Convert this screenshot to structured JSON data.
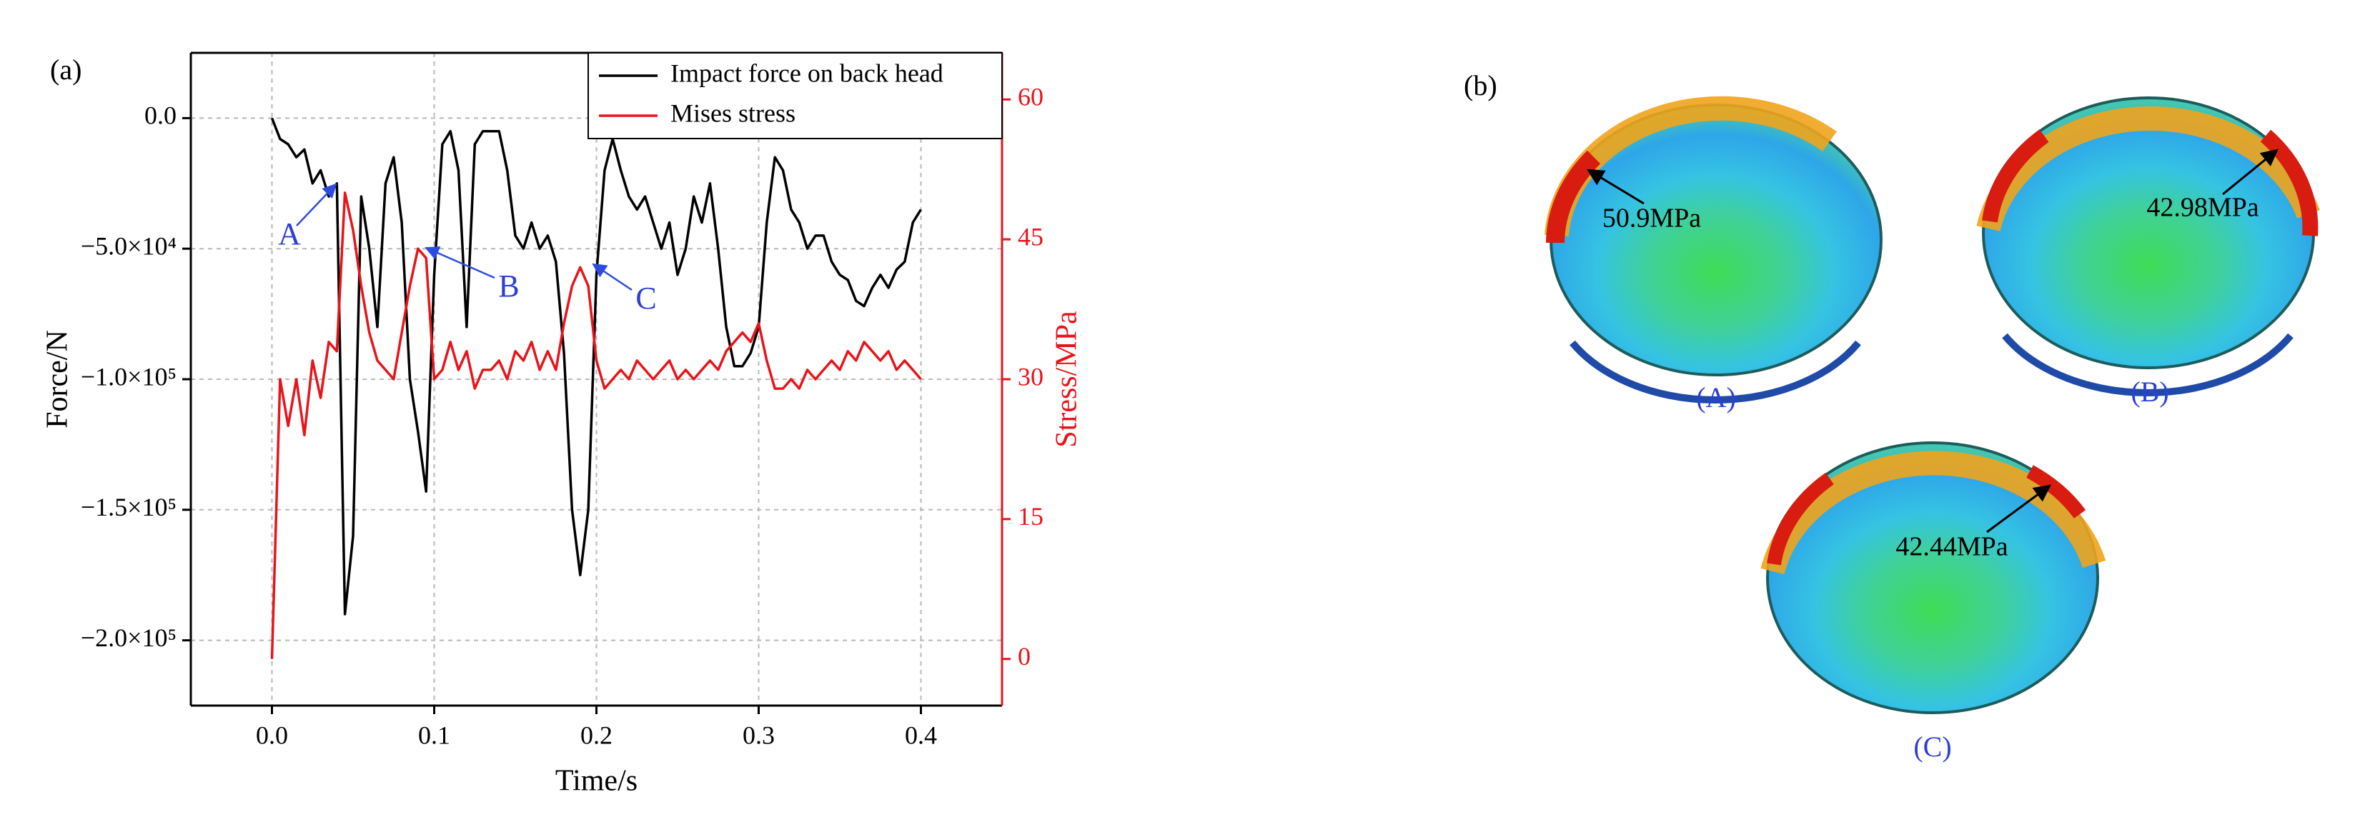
{
  "chart_data": {
    "type": "line",
    "panel_label": "(a)",
    "x_label": "Time/s",
    "y_label": "Force/N",
    "y2_label": "Stress/MPa",
    "xlim": [
      -0.05,
      0.45
    ],
    "xticks": [
      {
        "value": 0,
        "label": "0.0"
      },
      0.1,
      0.2,
      0.3,
      0.4
    ],
    "ylim": [
      -225000,
      25000
    ],
    "yticks": [
      {
        "value": 0,
        "label": "0.0"
      },
      {
        "value": -50000,
        "label": "−5.0×10⁴"
      },
      {
        "value": -100000,
        "label": "−1.0×10⁵"
      },
      {
        "value": -150000,
        "label": "−1.5×10⁵"
      },
      {
        "value": -200000,
        "label": "−2.0×10⁵"
      }
    ],
    "y2lim": [
      -5,
      65
    ],
    "y2ticks": [
      0,
      15,
      30,
      45,
      60
    ],
    "y2_color": "#e8141a",
    "grid": true,
    "legend": "top-right",
    "x": [
      0,
      0.005,
      0.01,
      0.015,
      0.02,
      0.025,
      0.03,
      0.035,
      0.04,
      0.045,
      0.05,
      0.055,
      0.06,
      0.065,
      0.07,
      0.075,
      0.08,
      0.085,
      0.09,
      0.095,
      0.1,
      0.105,
      0.11,
      0.115,
      0.12,
      0.125,
      0.13,
      0.135,
      0.14,
      0.145,
      0.15,
      0.155,
      0.16,
      0.165,
      0.17,
      0.175,
      0.18,
      0.185,
      0.19,
      0.195,
      0.2,
      0.205,
      0.21,
      0.215,
      0.22,
      0.225,
      0.23,
      0.235,
      0.24,
      0.245,
      0.25,
      0.255,
      0.26,
      0.265,
      0.27,
      0.275,
      0.28,
      0.285,
      0.29,
      0.295,
      0.3,
      0.305,
      0.31,
      0.315,
      0.32,
      0.325,
      0.33,
      0.335,
      0.34,
      0.345,
      0.35,
      0.355,
      0.36,
      0.365,
      0.37,
      0.375,
      0.38,
      0.385,
      0.39,
      0.395,
      0.4
    ],
    "series": [
      {
        "name": "Impact force on back head",
        "color": "#000000",
        "values": [
          0,
          -8000,
          -10000,
          -15000,
          -12000,
          -25000,
          -20000,
          -30000,
          -25000,
          -190000,
          -160000,
          -30000,
          -50000,
          -80000,
          -25000,
          -15000,
          -40000,
          -100000,
          -120000,
          -143000,
          -60000,
          -10000,
          -5000,
          -20000,
          -80000,
          -10000,
          -5000,
          -5000,
          -5000,
          -20000,
          -45000,
          -50000,
          -40000,
          -50000,
          -45000,
          -55000,
          -90000,
          -150000,
          -175000,
          -150000,
          -60000,
          -20000,
          -8000,
          -20000,
          -30000,
          -35000,
          -30000,
          -40000,
          -50000,
          -40000,
          -60000,
          -50000,
          -30000,
          -40000,
          -25000,
          -50000,
          -80000,
          -95000,
          -95000,
          -90000,
          -80000,
          -40000,
          -15000,
          -20000,
          -35000,
          -40000,
          -50000,
          -45000,
          -45000,
          -55000,
          -60000,
          -62000,
          -70000,
          -72000,
          -65000,
          -60000,
          -65000,
          -58000,
          -55000,
          -40000,
          -35000
        ]
      },
      {
        "name": "Mises stress",
        "color": "#e8141a",
        "axis": "y2",
        "values": [
          0,
          30,
          25,
          30,
          24,
          32,
          28,
          34,
          33,
          50,
          46,
          40,
          35,
          32,
          31,
          30,
          35,
          40,
          44,
          43,
          30,
          31,
          34,
          31,
          33,
          29,
          31,
          31,
          32,
          30,
          33,
          32,
          34,
          31,
          33,
          31,
          36,
          40,
          42,
          40,
          32,
          29,
          30,
          31,
          30,
          32,
          31,
          30,
          31,
          32,
          30,
          31,
          30,
          31,
          32,
          31,
          33,
          34,
          35,
          34,
          36,
          32,
          29,
          29,
          30,
          29,
          31,
          30,
          31,
          32,
          31,
          33,
          32,
          34,
          33,
          32,
          33,
          31,
          32,
          31,
          30
        ]
      }
    ],
    "annotations": [
      "A",
      "B",
      "C"
    ]
  },
  "panel_b": {
    "label": "(b)",
    "views": [
      {
        "caption": "(A)",
        "value": "50.9MPa"
      },
      {
        "caption": "(B)",
        "value": "42.98MPa"
      },
      {
        "caption": "(C)",
        "value": "42.44MPa"
      }
    ]
  }
}
